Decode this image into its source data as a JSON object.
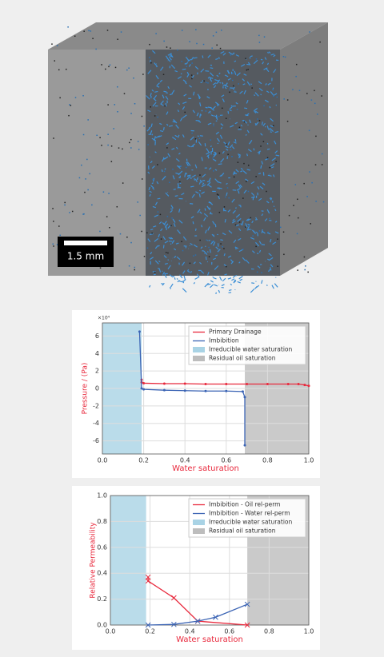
{
  "image": {
    "scale_bar": "1.5 mm"
  },
  "chart_data": [
    {
      "type": "line",
      "xlabel": "Water saturation",
      "ylabel": "Pressure / (Pa)",
      "y_multiplier": "×10⁴",
      "xlim": [
        0,
        1
      ],
      "ylim": [
        -7.5,
        7.5
      ],
      "xticks": [
        {
          "value": 0,
          "label": "0.0"
        },
        0.2,
        0.4,
        0.6,
        0.8,
        {
          "value": 1,
          "label": "1.0"
        }
      ],
      "yticks": [
        -6,
        -4,
        -2,
        0,
        2,
        4,
        6
      ],
      "grid": true,
      "legend": "upper right",
      "marker": "dot",
      "bands": [
        {
          "name": "Irreducible water saturation",
          "color": "#a9d3e5",
          "from": 0,
          "to": 0.19
        },
        {
          "name": "Residual oil saturation",
          "color": "#bdbdbd",
          "from": 0.69,
          "to": 1
        }
      ],
      "series": [
        {
          "name": "Primary Drainage",
          "color": "#e8283c",
          "x": [
            0.19,
            0.19,
            0.2,
            0.3,
            0.4,
            0.5,
            0.6,
            0.7,
            0.8,
            0.9,
            0.95,
            0.98,
            1.0
          ],
          "values": [
            1.0,
            0.7,
            0.6,
            0.55,
            0.55,
            0.5,
            0.5,
            0.5,
            0.5,
            0.5,
            0.5,
            0.4,
            0.3
          ]
        },
        {
          "name": "Imbibition",
          "color": "#3a63b4",
          "x": [
            0.18,
            0.19,
            0.2,
            0.3,
            0.4,
            0.5,
            0.6,
            0.68,
            0.69,
            0.69
          ],
          "values": [
            6.5,
            0,
            -0.1,
            -0.2,
            -0.25,
            -0.3,
            -0.3,
            -0.35,
            -1,
            -6.5
          ]
        }
      ]
    },
    {
      "type": "line",
      "xlabel": "Water saturation",
      "ylabel": "Relative Permeability",
      "xlim": [
        0,
        1
      ],
      "ylim": [
        0,
        1
      ],
      "xticks": [
        {
          "value": 0,
          "label": "0.0"
        },
        0.2,
        0.4,
        0.6,
        0.8,
        {
          "value": 1,
          "label": "1.0"
        }
      ],
      "yticks": [
        {
          "value": 0,
          "label": "0.0"
        },
        0.2,
        0.4,
        0.6,
        0.8,
        {
          "value": 1,
          "label": "1.0"
        }
      ],
      "grid": true,
      "legend": "upper right",
      "marker": "x",
      "bands": [
        {
          "name": "Irreducible water saturation",
          "color": "#a9d3e5",
          "from": 0,
          "to": 0.18
        },
        {
          "name": "Residual oil saturation",
          "color": "#bdbdbd",
          "from": 0.69,
          "to": 1
        }
      ],
      "series": [
        {
          "name": "Imbibition - Oil rel-perm",
          "color": "#e8283c",
          "x": [
            0.19,
            0.19,
            0.32,
            0.44,
            0.69
          ],
          "values": [
            0.37,
            0.34,
            0.21,
            0.03,
            0.0
          ]
        },
        {
          "name": "Imbibition - Water rel-perm",
          "color": "#3a63b4",
          "x": [
            0.19,
            0.32,
            0.44,
            0.53,
            0.69
          ],
          "values": [
            0.0,
            0.005,
            0.03,
            0.06,
            0.16
          ]
        }
      ]
    }
  ]
}
